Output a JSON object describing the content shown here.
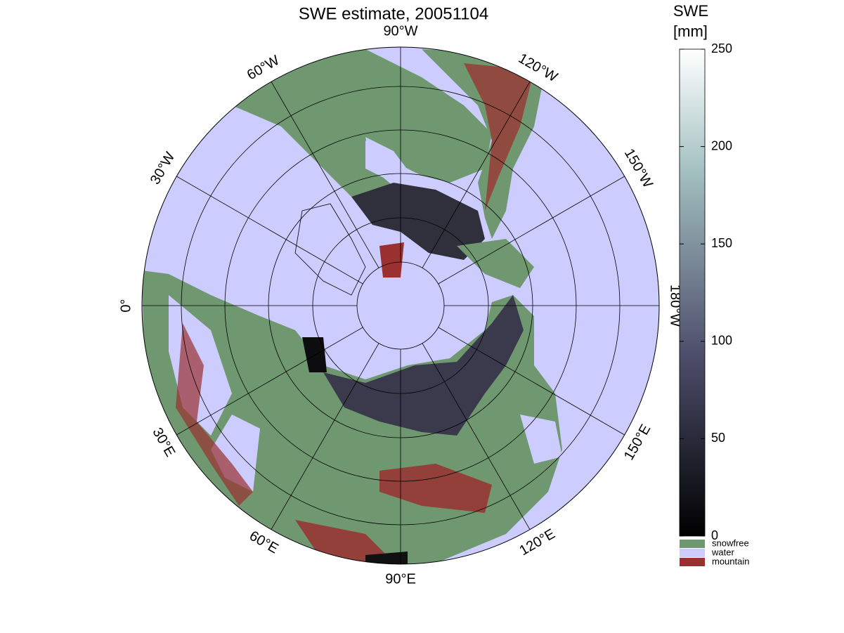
{
  "title": "SWE estimate, 20051104",
  "longitude_labels": [
    "90°W",
    "120°W",
    "150°W",
    "180°W",
    "150°E",
    "120°E",
    "90°E",
    "60°E",
    "30°E",
    "0°",
    "30°W",
    "60°W"
  ],
  "colorbar": {
    "label": [
      "SWE",
      "[mm]"
    ],
    "ticks": [
      0,
      50,
      100,
      150,
      200,
      250
    ],
    "legend": [
      {
        "name": "snowfree",
        "color": "#6f9870"
      },
      {
        "name": "water",
        "color": "#ccccff"
      },
      {
        "name": "mountain",
        "color": "#9b3030"
      }
    ]
  }
}
